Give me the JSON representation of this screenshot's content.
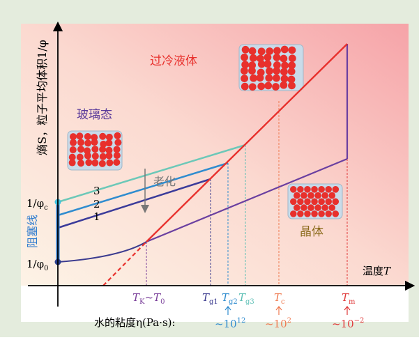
{
  "axes": {
    "x_label": {
      "text": "温度",
      "symbol": "T"
    },
    "y_label": "熵S，粒子平均体积1/φ"
  },
  "jamming_line": "阻塞线",
  "regions": {
    "liquid": "过冷液体",
    "glass": "玻璃态",
    "crystal": "晶体"
  },
  "aging": "老化",
  "glass_lines": [
    "1",
    "2",
    "3"
  ],
  "y_marks": [
    {
      "symbol": "1/φ",
      "sub": "0"
    },
    {
      "symbol": "1/φ",
      "sub": "c"
    }
  ],
  "x_marks": [
    {
      "symbol": "T",
      "sub": "K",
      "tail": "~T",
      "tail_sub": "0"
    },
    {
      "symbol": "T",
      "sub": "g1"
    },
    {
      "symbol": "T",
      "sub": "g2"
    },
    {
      "symbol": "T",
      "sub": "g3"
    },
    {
      "symbol": "T",
      "sub": "c"
    },
    {
      "symbol": "T",
      "sub": "m"
    }
  ],
  "viscosity": {
    "label": "水的粘度η(Pa·s):",
    "values": [
      {
        "base": "~10",
        "exp": "12"
      },
      {
        "base": "~10",
        "exp": "2"
      },
      {
        "base": "~10",
        "exp": "−2"
      }
    ]
  }
}
